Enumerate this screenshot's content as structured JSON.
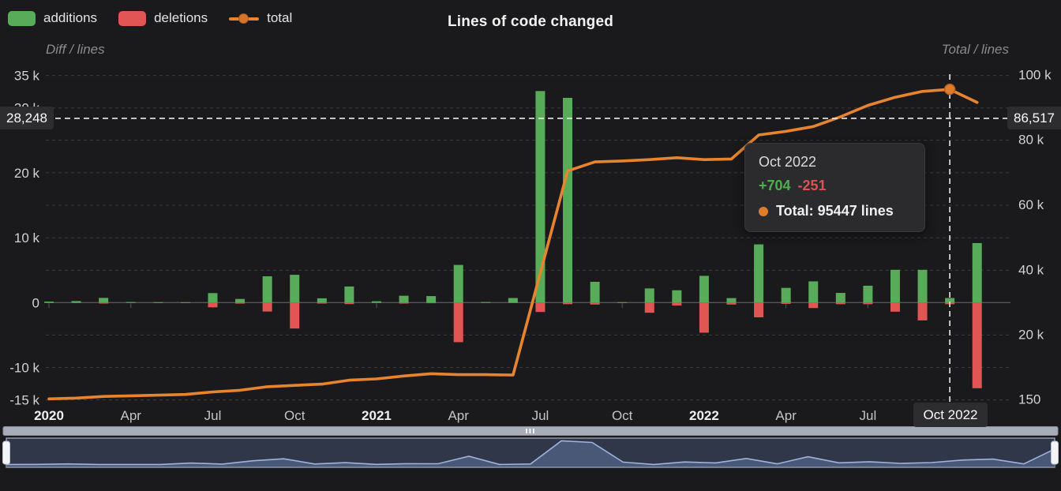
{
  "header": {
    "title": "Lines of code changed",
    "legend": [
      {
        "label": "additions",
        "color": "#58ac59"
      },
      {
        "label": "deletions",
        "color": "#e15654"
      },
      {
        "label": "total",
        "color": "#e8842d"
      }
    ]
  },
  "axes": {
    "left": {
      "name": "Diff / lines",
      "ticks": [
        {
          "label": "35 k",
          "value": 35000
        },
        {
          "label": "30 k",
          "value": 30000
        },
        {
          "label": "20 k",
          "value": 20000
        },
        {
          "label": "10 k",
          "value": 10000
        },
        {
          "label": "0",
          "value": 0
        },
        {
          "label": "-10 k",
          "value": -10000
        },
        {
          "label": "-15 k",
          "value": -15000
        }
      ]
    },
    "right": {
      "name": "Total / lines",
      "ticks": [
        {
          "label": "100 k",
          "value": 100000
        },
        {
          "label": "80 k",
          "value": 80000
        },
        {
          "label": "60 k",
          "value": 60000
        },
        {
          "label": "40 k",
          "value": 40000
        },
        {
          "label": "20 k",
          "value": 20000
        },
        {
          "label": "150",
          "value": 150
        }
      ]
    },
    "x": {
      "labels": [
        {
          "label": "2020",
          "month_index": 0,
          "bold": true
        },
        {
          "label": "Apr",
          "month_index": 3,
          "bold": false
        },
        {
          "label": "Jul",
          "month_index": 6,
          "bold": false
        },
        {
          "label": "Oct",
          "month_index": 9,
          "bold": false
        },
        {
          "label": "2021",
          "month_index": 12,
          "bold": true
        },
        {
          "label": "Apr",
          "month_index": 15,
          "bold": false
        },
        {
          "label": "Jul",
          "month_index": 18,
          "bold": false
        },
        {
          "label": "Oct",
          "month_index": 21,
          "bold": false
        },
        {
          "label": "2022",
          "month_index": 24,
          "bold": true
        },
        {
          "label": "Apr",
          "month_index": 27,
          "bold": false
        },
        {
          "label": "Jul",
          "month_index": 30,
          "bold": false
        }
      ]
    }
  },
  "crosshair": {
    "left_label": "28,248",
    "left_value": 28248,
    "right_label": "86,517",
    "right_value": 86517,
    "x_label": "Oct 2022",
    "month_index": 33
  },
  "tooltip": {
    "title": "Oct 2022",
    "additions": "+704",
    "deletions": "-251",
    "total_label": "Total: 95447 lines"
  },
  "chart_data": {
    "type": "combo-bar-line",
    "title": "Lines of code changed",
    "categories": [
      "Jan 2020",
      "Feb 2020",
      "Mar 2020",
      "Apr 2020",
      "May 2020",
      "Jun 2020",
      "Jul 2020",
      "Aug 2020",
      "Sep 2020",
      "Oct 2020",
      "Nov 2020",
      "Dec 2020",
      "Jan 2021",
      "Feb 2021",
      "Mar 2021",
      "Apr 2021",
      "May 2021",
      "Jun 2021",
      "Jul 2021",
      "Aug 2021",
      "Sep 2021",
      "Oct 2021",
      "Nov 2021",
      "Dec 2021",
      "Jan 2022",
      "Feb 2022",
      "Mar 2022",
      "Apr 2022",
      "May 2022",
      "Jun 2022",
      "Jul 2022",
      "Aug 2022",
      "Sep 2022",
      "Oct 2022",
      "Nov 2022"
    ],
    "series": [
      {
        "name": "additions",
        "type": "bar",
        "axis": "left",
        "color": "#58ac59",
        "values": [
          150,
          230,
          720,
          90,
          60,
          50,
          1460,
          560,
          4050,
          4280,
          660,
          2480,
          200,
          1050,
          1000,
          5800,
          80,
          700,
          32600,
          31550,
          3200,
          60,
          2180,
          1900,
          4120,
          690,
          8970,
          2260,
          3270,
          1490,
          2600,
          5050,
          5050,
          704,
          9170
        ]
      },
      {
        "name": "deletions",
        "type": "bar",
        "axis": "left",
        "direction": "down",
        "color": "#e15654",
        "values": [
          10,
          30,
          150,
          10,
          10,
          10,
          730,
          160,
          1380,
          4000,
          150,
          230,
          50,
          150,
          100,
          6100,
          30,
          50,
          1450,
          250,
          300,
          20,
          1570,
          450,
          4640,
          300,
          2270,
          200,
          850,
          250,
          250,
          1400,
          2750,
          251,
          13200
        ]
      },
      {
        "name": "total",
        "type": "line",
        "axis": "right",
        "color": "#e8842d",
        "values": [
          150,
          400,
          900,
          1100,
          1300,
          1500,
          2300,
          2800,
          3900,
          4300,
          4700,
          5900,
          6300,
          7200,
          7900,
          7600,
          7600,
          7500,
          38900,
          70300,
          73100,
          73400,
          73800,
          74400,
          73800,
          74000,
          81400,
          82500,
          84000,
          87000,
          90500,
          93000,
          94800,
          95447,
          91417
        ]
      }
    ],
    "left_axis": {
      "label": "Diff / lines",
      "gridline_step": 5000,
      "grid_top": 35000,
      "grid_bottom": -15000
    },
    "right_axis": {
      "label": "Total / lines",
      "min": 150,
      "max": 100000
    },
    "grid": "dashed",
    "legend_position": "top-left",
    "highlighted_point": {
      "month": "Oct 2022",
      "additions": 704,
      "deletions": 251,
      "total": 95447
    }
  },
  "colors": {
    "background": "#1a1a1c",
    "additions": "#58ac59",
    "deletions": "#e15654",
    "total_line": "#e8842d",
    "crosshair": "#eaeaea",
    "label_box": "#2d2d30",
    "navigator_fill": "#4a5877",
    "navigator_line": "#9fb3dc",
    "scrollbar": "#a6acb8"
  }
}
